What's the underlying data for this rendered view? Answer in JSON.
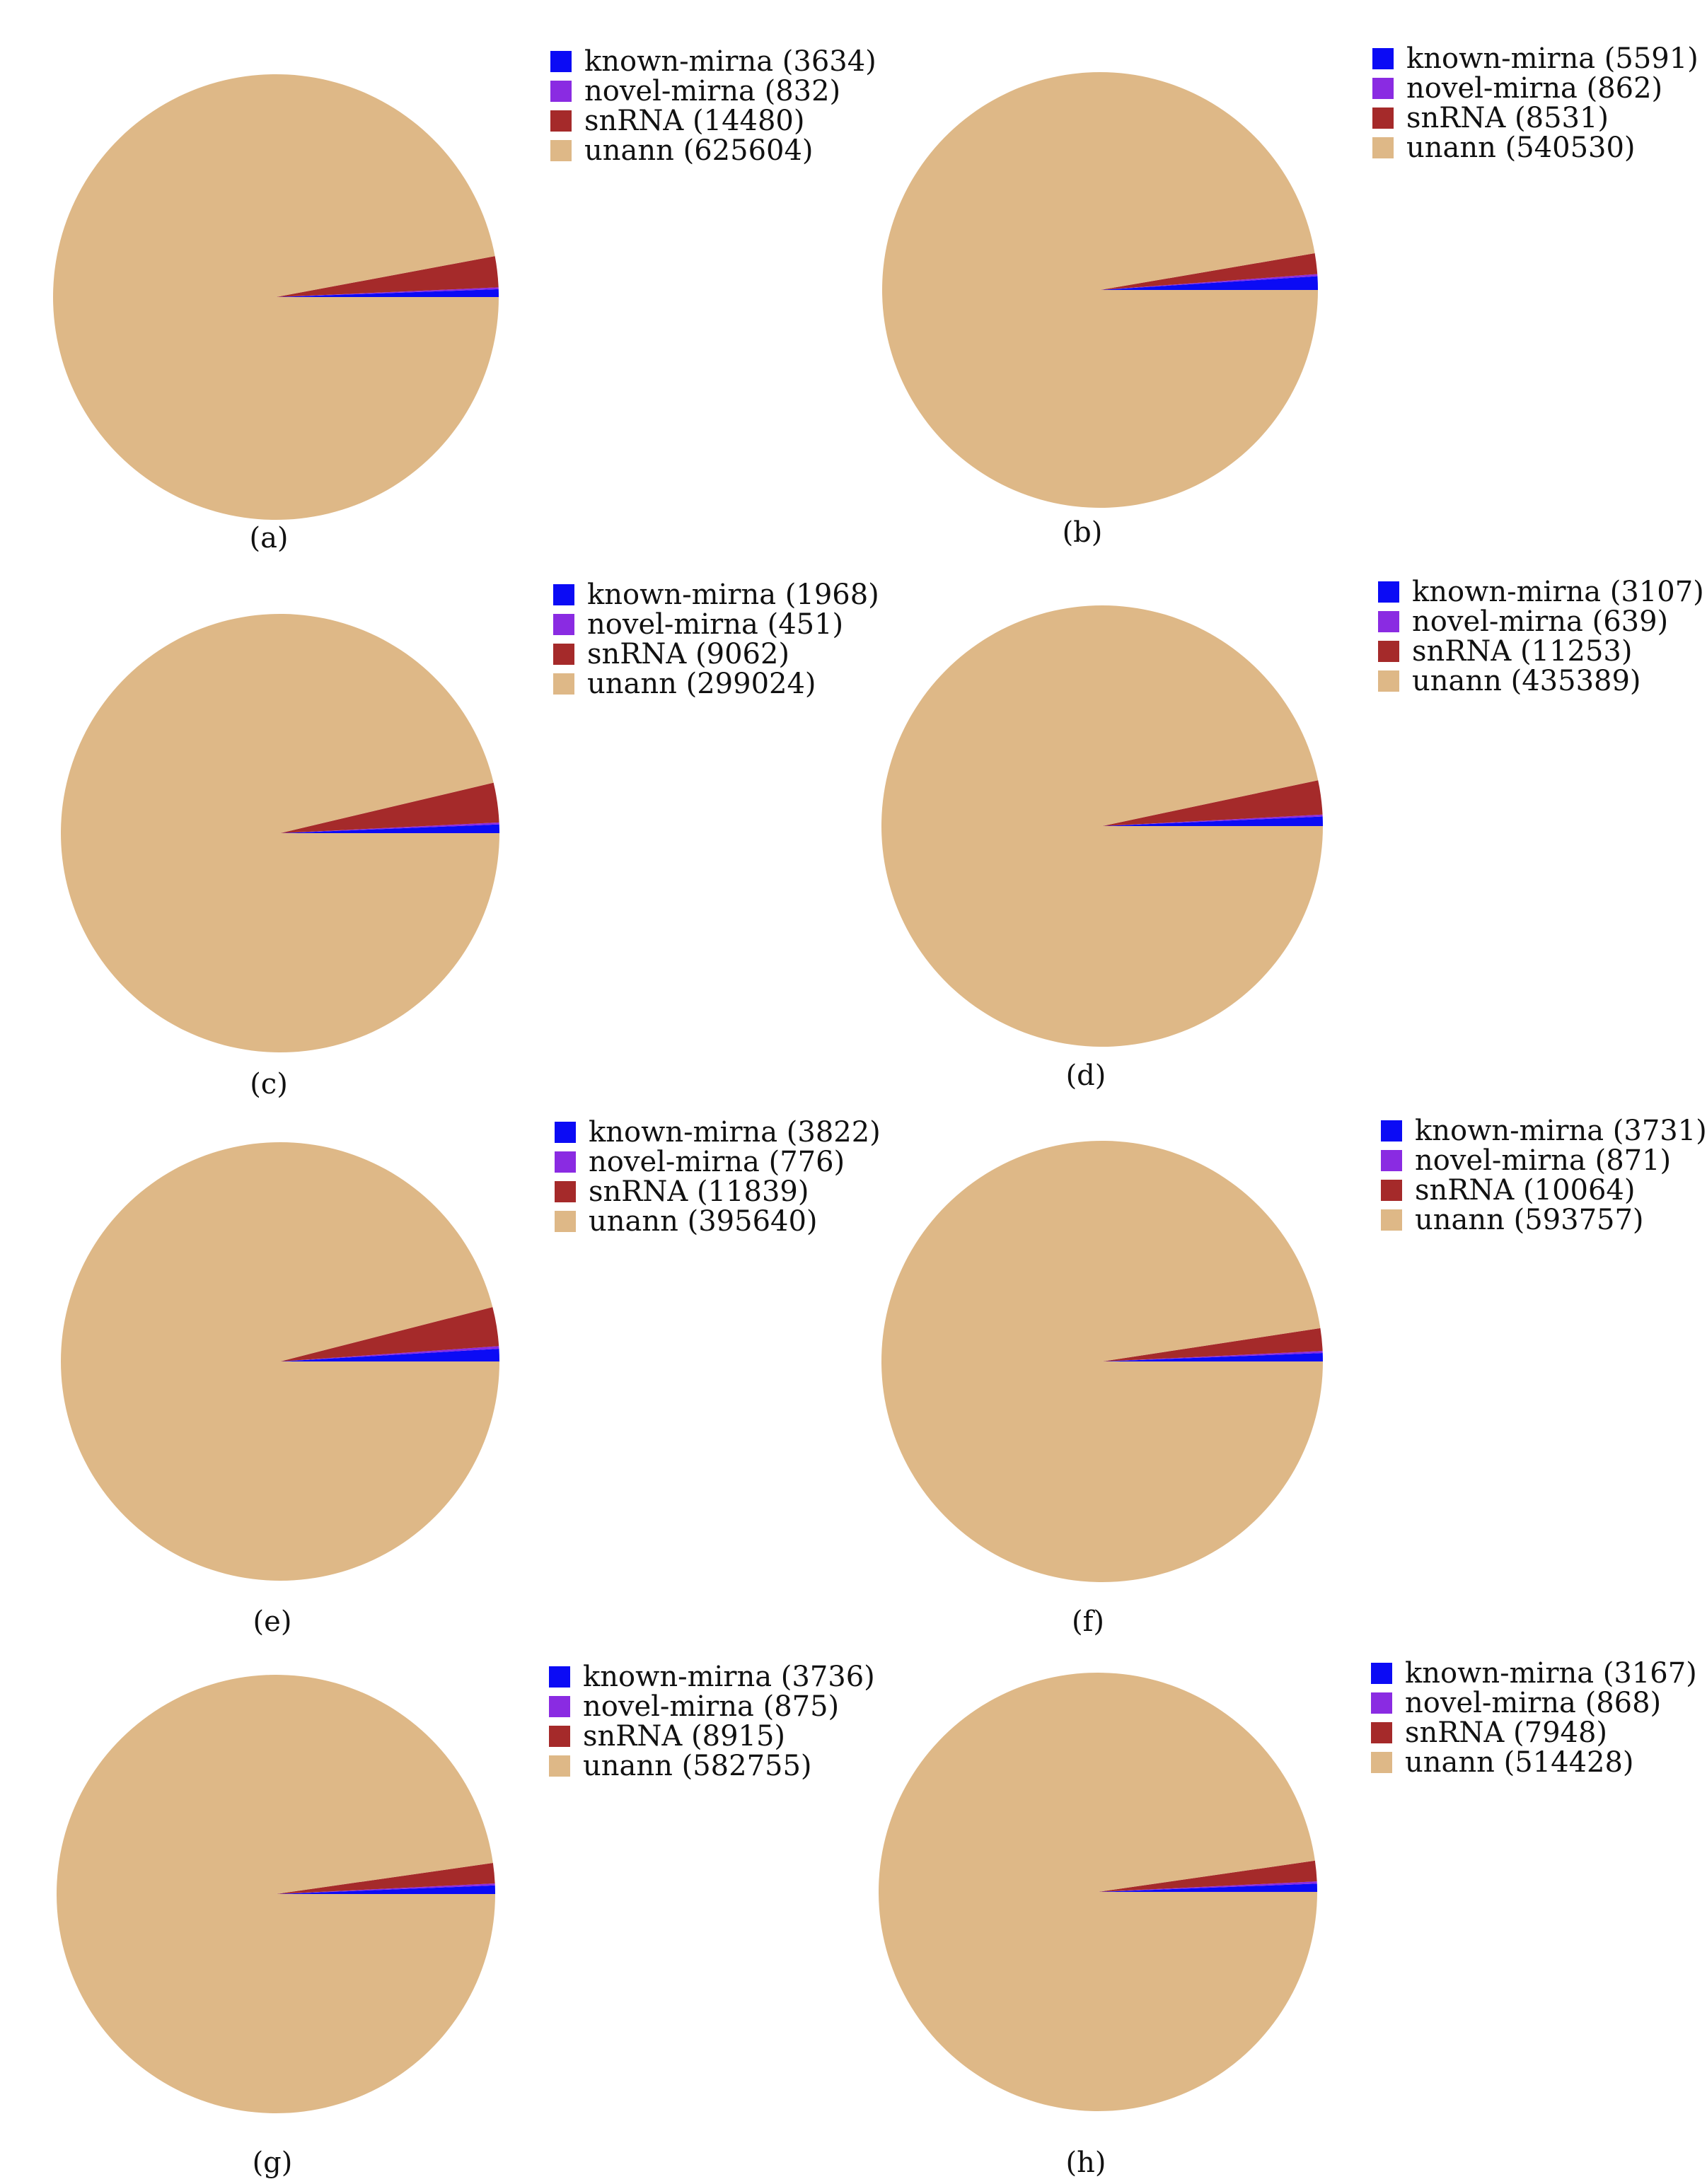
{
  "colors": {
    "known-mirna": "#0b0bf5",
    "novel-mirna": "#8a2be2",
    "snRNA": "#a52a2a",
    "unann": "#deb887"
  },
  "chart_data": [
    {
      "type": "pie",
      "panel": "(a)",
      "categories": [
        "known-mirna",
        "novel-mirna",
        "snRNA",
        "unann"
      ],
      "values": [
        3634,
        832,
        14480,
        625604
      ],
      "legend": [
        "known-mirna (3634)",
        "novel-mirna (832)",
        "snRNA (14480)",
        "unann (625604)"
      ],
      "legend_position": "top-right"
    },
    {
      "type": "pie",
      "panel": "(b)",
      "categories": [
        "known-mirna",
        "novel-mirna",
        "snRNA",
        "unann"
      ],
      "values": [
        5591,
        862,
        8531,
        540530
      ],
      "legend": [
        "known-mirna (5591)",
        "novel-mirna (862)",
        "snRNA (8531)",
        "unann (540530)"
      ],
      "legend_position": "top-right"
    },
    {
      "type": "pie",
      "panel": "(c)",
      "categories": [
        "known-mirna",
        "novel-mirna",
        "snRNA",
        "unann"
      ],
      "values": [
        1968,
        451,
        9062,
        299024
      ],
      "legend": [
        "known-mirna (1968)",
        "novel-mirna (451)",
        "snRNA (9062)",
        "unann (299024)"
      ],
      "legend_position": "top-right"
    },
    {
      "type": "pie",
      "panel": "(d)",
      "categories": [
        "known-mirna",
        "novel-mirna",
        "snRNA",
        "unann"
      ],
      "values": [
        3107,
        639,
        11253,
        435389
      ],
      "legend": [
        "known-mirna (3107)",
        "novel-mirna (639)",
        "snRNA (11253)",
        "unann (435389)"
      ],
      "legend_position": "top-right"
    },
    {
      "type": "pie",
      "panel": "(e)",
      "categories": [
        "known-mirna",
        "novel-mirna",
        "snRNA",
        "unann"
      ],
      "values": [
        3822,
        776,
        11839,
        395640
      ],
      "legend": [
        "known-mirna (3822)",
        "novel-mirna (776)",
        "snRNA (11839)",
        "unann (395640)"
      ],
      "legend_position": "top-right"
    },
    {
      "type": "pie",
      "panel": "(f)",
      "categories": [
        "known-mirna",
        "novel-mirna",
        "snRNA",
        "unann"
      ],
      "values": [
        3731,
        871,
        10064,
        593757
      ],
      "legend": [
        "known-mirna (3731)",
        "novel-mirna (871)",
        "snRNA (10064)",
        "unann (593757)"
      ],
      "legend_position": "top-right"
    },
    {
      "type": "pie",
      "panel": "(g)",
      "categories": [
        "known-mirna",
        "novel-mirna",
        "snRNA",
        "unann"
      ],
      "values": [
        3736,
        875,
        8915,
        582755
      ],
      "legend": [
        "known-mirna (3736)",
        "novel-mirna (875)",
        "snRNA (8915)",
        "unann (582755)"
      ],
      "legend_position": "top-right"
    },
    {
      "type": "pie",
      "panel": "(h)",
      "categories": [
        "known-mirna",
        "novel-mirna",
        "snRNA",
        "unann"
      ],
      "values": [
        3167,
        868,
        7948,
        514428
      ],
      "legend": [
        "known-mirna (3167)",
        "novel-mirna (868)",
        "snRNA (7948)",
        "unann (514428)"
      ],
      "legend_position": "top-right"
    }
  ]
}
